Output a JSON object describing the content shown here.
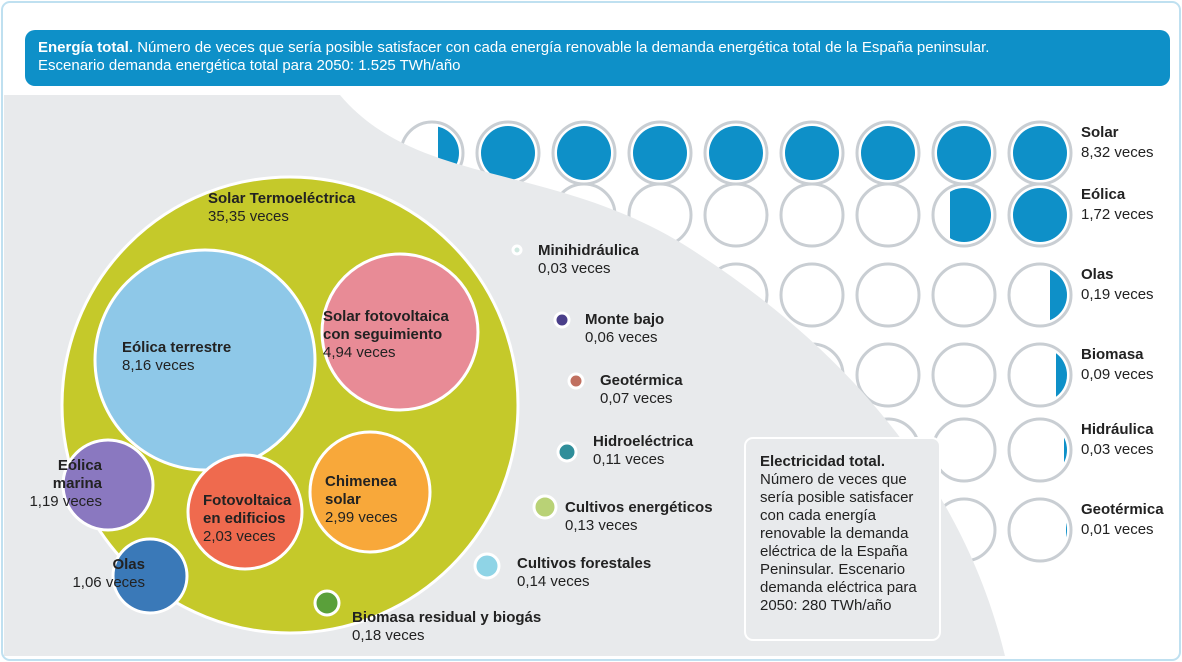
{
  "header": {
    "title": "Energía total.",
    "text": "Número de veces que sería posible satisfacer con cada energía renovable la demanda energética total de la España peninsular.",
    "subtitle": "Escenario demanda energética total para 2050: 1.525 TWh/año"
  },
  "bubbles": [
    {
      "name": [
        "Solar Termoeléctrica"
      ],
      "label": "35,35 veces"
    },
    {
      "name": [
        "Eólica terrestre"
      ],
      "label": "8,16 veces"
    },
    {
      "name": [
        "Solar fotovoltaica",
        "con seguimiento"
      ],
      "label": "4,94 veces"
    },
    {
      "name": [
        "Chimenea",
        "solar"
      ],
      "label": "2,99 veces"
    },
    {
      "name": [
        "Fotovoltaica",
        "en edificios"
      ],
      "label": "2,03 veces"
    },
    {
      "name": [
        "Eólica",
        "marina"
      ],
      "label": "1,19 veces"
    },
    {
      "name": [
        "Olas"
      ],
      "label": "1,06 veces"
    },
    {
      "name": [
        "Minihidráulica"
      ],
      "label": "0,03 veces"
    },
    {
      "name": [
        "Monte bajo"
      ],
      "label": "0,06 veces"
    },
    {
      "name": [
        "Geotérmica"
      ],
      "label": "0,07 veces"
    },
    {
      "name": [
        "Hidroeléctrica"
      ],
      "label": "0,11 veces"
    },
    {
      "name": [
        "Cultivos energéticos"
      ],
      "label": "0,13 veces"
    },
    {
      "name": [
        "Cultivos forestales"
      ],
      "label": "0,14 veces"
    },
    {
      "name": [
        "Biomasa residual y biogás"
      ],
      "label": "0,18 veces"
    }
  ],
  "electricity": {
    "title": "Electricidad total.",
    "lines": [
      "Número de veces que",
      "sería posible satisfacer",
      "con cada energía",
      "renovable la demanda",
      "eléctrica de la España",
      "Peninsular. Escenario",
      "demanda eléctrica para",
      "2050: 280 TWh/año"
    ]
  },
  "right": [
    {
      "name": "Solar",
      "label": "8,32 veces"
    },
    {
      "name": "Eólica",
      "label": "1,72 veces"
    },
    {
      "name": "Olas",
      "label": "0,19 veces"
    },
    {
      "name": "Biomasa",
      "label": "0,09 veces"
    },
    {
      "name": "Hidráulica",
      "label": "0,03 veces"
    },
    {
      "name": "Geotérmica",
      "label": "0,01 veces"
    }
  ]
}
